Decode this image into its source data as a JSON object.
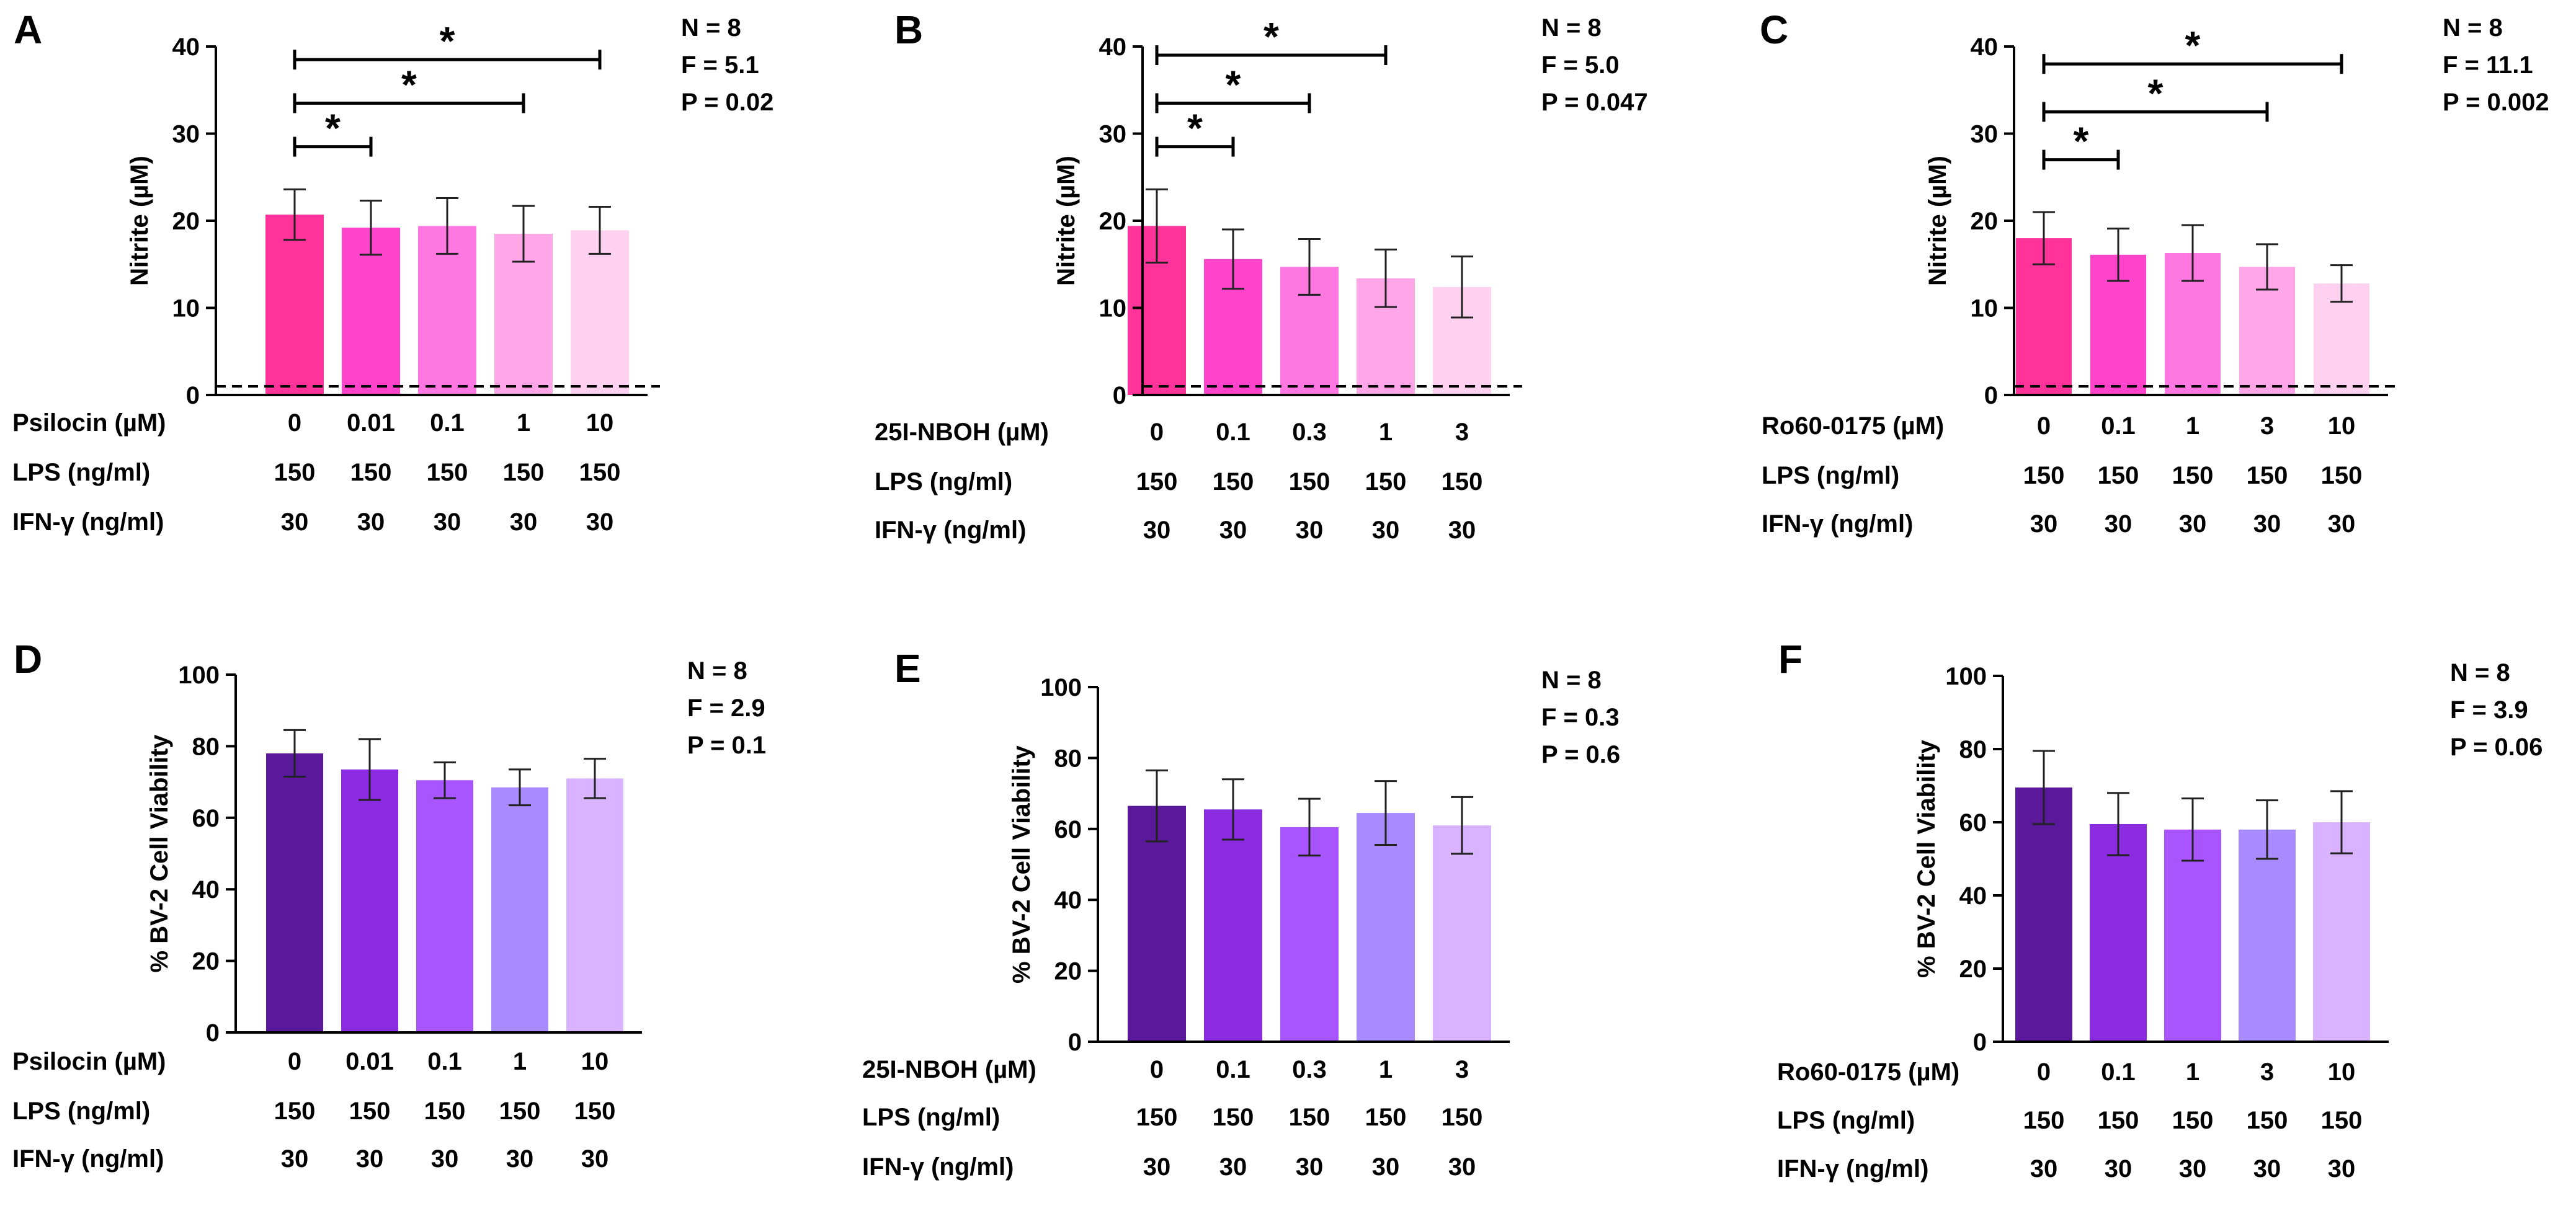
{
  "chart_data": [
    {
      "panel": "A",
      "type": "bar",
      "categories": [
        "0",
        "0.01",
        "0.1",
        "1",
        "10"
      ],
      "values": [
        20.7,
        19.2,
        19.4,
        18.5,
        18.9
      ],
      "errors": [
        2.9,
        3.1,
        3.2,
        3.2,
        2.7
      ],
      "colors": [
        "#FF3399",
        "#FF44CC",
        "#FF77E0",
        "#FFA6E8",
        "#FFD1F1"
      ],
      "ylabel": "Nitrite (µM)",
      "ylim": [
        0,
        40
      ],
      "yticks": [
        "0",
        "10",
        "20",
        "30",
        "40"
      ],
      "baseline": 1,
      "stats": [
        "N = 8",
        "F = 5.1",
        "P = 0.02"
      ],
      "significance": [
        {
          "from": 0,
          "to": 1,
          "y": 28.5,
          "label": "*"
        },
        {
          "from": 0,
          "to": 3,
          "y": 33.5,
          "label": "*"
        },
        {
          "from": 0,
          "to": 4,
          "y": 38.5,
          "label": "*"
        }
      ],
      "rows": [
        {
          "label": "Psilocin (µM)",
          "values": [
            "0",
            "0.01",
            "0.1",
            "1",
            "10"
          ]
        },
        {
          "label": "LPS (ng/ml)",
          "values": [
            "150",
            "150",
            "150",
            "150",
            "150"
          ]
        },
        {
          "label": "IFN-γ (ng/ml)",
          "values": [
            "30",
            "30",
            "30",
            "30",
            "30"
          ]
        }
      ]
    },
    {
      "panel": "B",
      "type": "bar",
      "categories": [
        "0",
        "0.1",
        "0.3",
        "1",
        "3"
      ],
      "values": [
        19.4,
        15.6,
        14.7,
        13.4,
        12.4
      ],
      "errors": [
        4.2,
        3.4,
        3.2,
        3.3,
        3.5
      ],
      "colors": [
        "#FF3399",
        "#FF44CC",
        "#FF77E0",
        "#FFA6E8",
        "#FFD1F1"
      ],
      "ylabel": "Nitrite (µM)",
      "ylim": [
        0,
        40
      ],
      "yticks": [
        "0",
        "10",
        "20",
        "30",
        "40"
      ],
      "baseline": 1,
      "stats": [
        "N = 8",
        "F = 5.0",
        "P = 0.047"
      ],
      "significance": [
        {
          "from": 0,
          "to": 1,
          "y": 28.5,
          "label": "*"
        },
        {
          "from": 0,
          "to": 2,
          "y": 33.5,
          "label": "*"
        },
        {
          "from": 0,
          "to": 3,
          "y": 39,
          "label": "*"
        }
      ],
      "rows": [
        {
          "label": "25I-NBOH (µM)",
          "values": [
            "0",
            "0.1",
            "0.3",
            "1",
            "3"
          ]
        },
        {
          "label": "LPS (ng/ml)",
          "values": [
            "150",
            "150",
            "150",
            "150",
            "150"
          ]
        },
        {
          "label": "IFN-γ (ng/ml)",
          "values": [
            "30",
            "30",
            "30",
            "30",
            "30"
          ]
        }
      ]
    },
    {
      "panel": "C",
      "type": "bar",
      "categories": [
        "0",
        "0.1",
        "1",
        "3",
        "10"
      ],
      "values": [
        18.0,
        16.1,
        16.3,
        14.7,
        12.8
      ],
      "errors": [
        3.0,
        3.0,
        3.2,
        2.6,
        2.1
      ],
      "colors": [
        "#FF3399",
        "#FF44CC",
        "#FF77E0",
        "#FFA6E8",
        "#FFD1F1"
      ],
      "ylabel": "Nitrite (µM)",
      "ylim": [
        0,
        40
      ],
      "yticks": [
        "0",
        "10",
        "20",
        "30",
        "40"
      ],
      "baseline": 1,
      "stats": [
        "N = 8",
        "F = 11.1",
        "P = 0.002"
      ],
      "significance": [
        {
          "from": 0,
          "to": 1,
          "y": 27,
          "label": "*"
        },
        {
          "from": 0,
          "to": 3,
          "y": 32.5,
          "label": "*"
        },
        {
          "from": 0,
          "to": 4,
          "y": 38,
          "label": "*"
        }
      ],
      "rows": [
        {
          "label": "Ro60-0175 (µM)",
          "values": [
            "0",
            "0.1",
            "1",
            "3",
            "10"
          ]
        },
        {
          "label": "LPS (ng/ml)",
          "values": [
            "150",
            "150",
            "150",
            "150",
            "150"
          ]
        },
        {
          "label": "IFN-γ (ng/ml)",
          "values": [
            "30",
            "30",
            "30",
            "30",
            "30"
          ]
        }
      ]
    },
    {
      "panel": "D",
      "type": "bar",
      "categories": [
        "0",
        "0.01",
        "0.1",
        "1",
        "10"
      ],
      "values": [
        78,
        73.5,
        70.5,
        68.5,
        71
      ],
      "errors": [
        6.5,
        8.5,
        5,
        5,
        5.5
      ],
      "colors": [
        "#5A189A",
        "#8B2BE2",
        "#A955FF",
        "#A98BFF",
        "#D9B3FF"
      ],
      "ylabel": "% BV-2 Cell Viability",
      "ylim": [
        0,
        100
      ],
      "yticks": [
        "0",
        "20",
        "40",
        "60",
        "80",
        "100"
      ],
      "stats": [
        "N = 8",
        "F = 2.9",
        "P = 0.1"
      ],
      "significance": [],
      "rows": [
        {
          "label": "Psilocin (µM)",
          "values": [
            "0",
            "0.01",
            "0.1",
            "1",
            "10"
          ]
        },
        {
          "label": "LPS (ng/ml)",
          "values": [
            "150",
            "150",
            "150",
            "150",
            "150"
          ]
        },
        {
          "label": "IFN-γ (ng/ml)",
          "values": [
            "30",
            "30",
            "30",
            "30",
            "30"
          ]
        }
      ]
    },
    {
      "panel": "E",
      "type": "bar",
      "categories": [
        "0",
        "0.1",
        "0.3",
        "1",
        "3"
      ],
      "values": [
        66.5,
        65.5,
        60.5,
        64.5,
        61
      ],
      "errors": [
        10,
        8.5,
        8,
        9,
        8
      ],
      "colors": [
        "#5A189A",
        "#8B2BE2",
        "#A955FF",
        "#A98BFF",
        "#D9B3FF"
      ],
      "ylabel": "% BV-2 Cell Viability",
      "ylim": [
        0,
        100
      ],
      "yticks": [
        "0",
        "20",
        "40",
        "60",
        "80",
        "100"
      ],
      "stats": [
        "N = 8",
        "F = 0.3",
        "P = 0.6"
      ],
      "significance": [],
      "rows": [
        {
          "label": "25I-NBOH (µM)",
          "values": [
            "0",
            "0.1",
            "0.3",
            "1",
            "3"
          ]
        },
        {
          "label": "LPS (ng/ml)",
          "values": [
            "150",
            "150",
            "150",
            "150",
            "150"
          ]
        },
        {
          "label": "IFN-γ (ng/ml)",
          "values": [
            "30",
            "30",
            "30",
            "30",
            "30"
          ]
        }
      ]
    },
    {
      "panel": "F",
      "type": "bar",
      "categories": [
        "0",
        "0.1",
        "1",
        "3",
        "10"
      ],
      "values": [
        69.5,
        59.5,
        58,
        58,
        60
      ],
      "errors": [
        10,
        8.5,
        8.5,
        8,
        8.5
      ],
      "colors": [
        "#5A189A",
        "#8B2BE2",
        "#A955FF",
        "#A98BFF",
        "#D9B3FF"
      ],
      "ylabel": "% BV-2 Cell Viability",
      "ylim": [
        0,
        100
      ],
      "yticks": [
        "0",
        "20",
        "40",
        "60",
        "80",
        "100"
      ],
      "stats": [
        "N = 8",
        "F = 3.9",
        "P = 0.06"
      ],
      "significance": [],
      "rows": [
        {
          "label": "Ro60-0175 (µM)",
          "values": [
            "0",
            "0.1",
            "1",
            "3",
            "10"
          ]
        },
        {
          "label": "LPS (ng/ml)",
          "values": [
            "150",
            "150",
            "150",
            "150",
            "150"
          ]
        },
        {
          "label": "IFN-γ (ng/ml)",
          "values": [
            "30",
            "30",
            "30",
            "30",
            "30"
          ]
        }
      ]
    }
  ]
}
